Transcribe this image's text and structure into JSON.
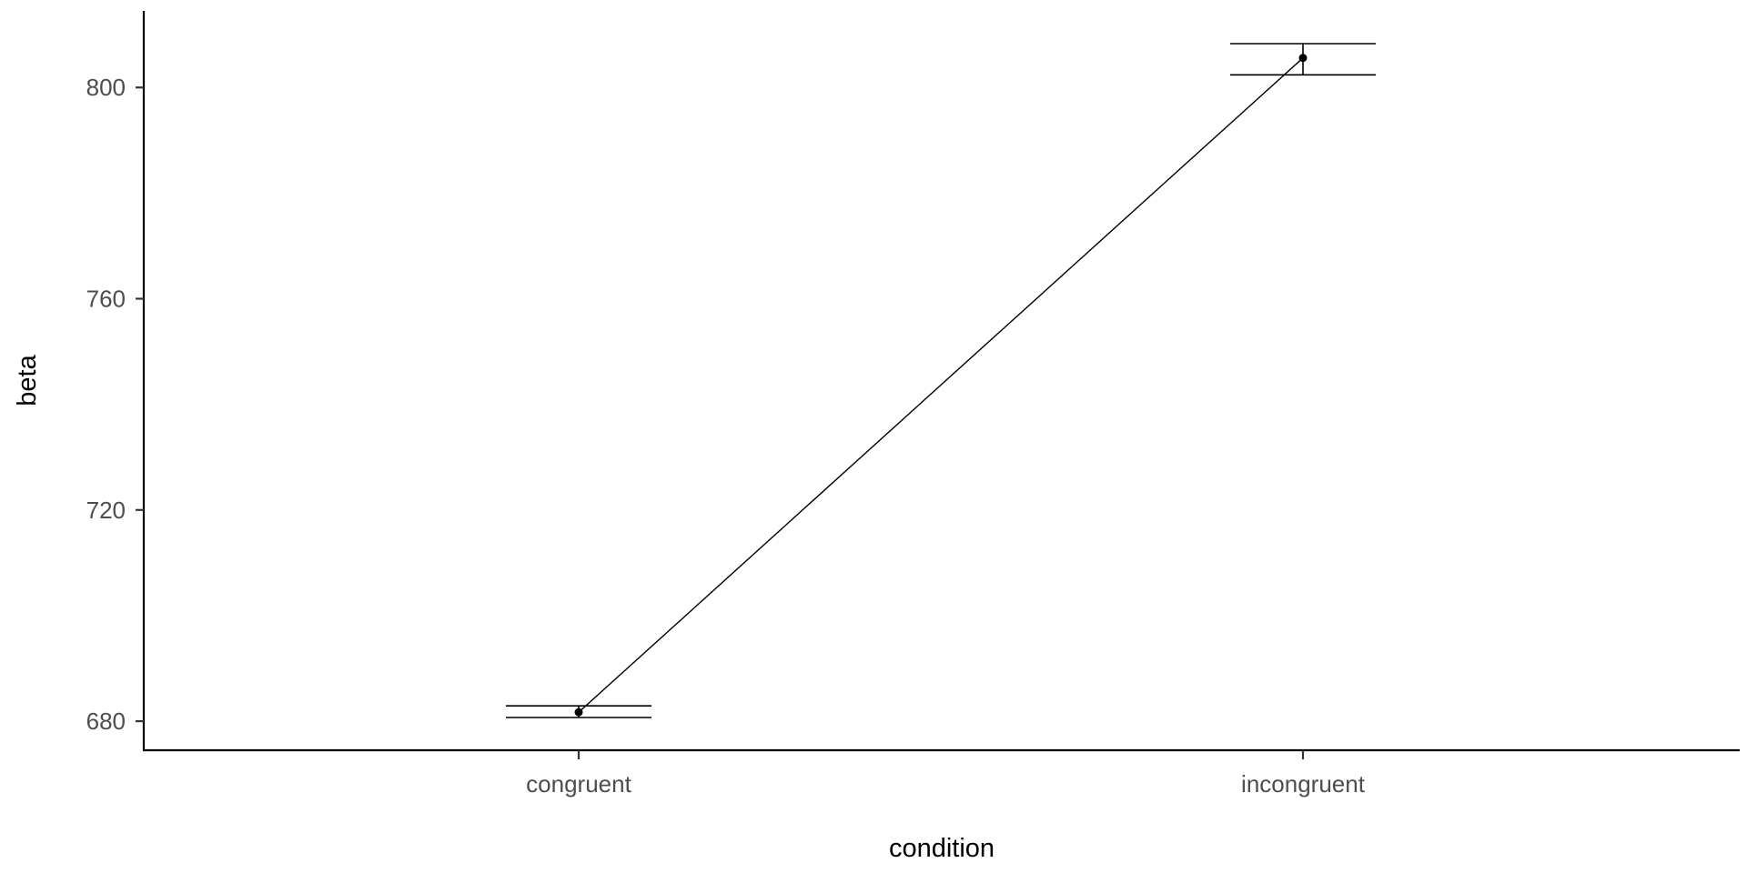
{
  "chart_data": {
    "type": "line",
    "categories": [
      "congruent",
      "incongruent"
    ],
    "xlabel": "condition",
    "ylabel": "beta",
    "ylim": [
      674.5,
      814.5
    ],
    "yticks": [
      680,
      720,
      760,
      800
    ],
    "grid": false,
    "legend": "none",
    "series": [
      {
        "values": [
          681.7,
          805.6
        ],
        "error_low": [
          680.7,
          802.4
        ],
        "error_high": [
          682.9,
          808.3
        ]
      }
    ],
    "colors": {
      "line": "#000000",
      "axis": "#000000",
      "tick_label": "#4d4d4d"
    }
  }
}
